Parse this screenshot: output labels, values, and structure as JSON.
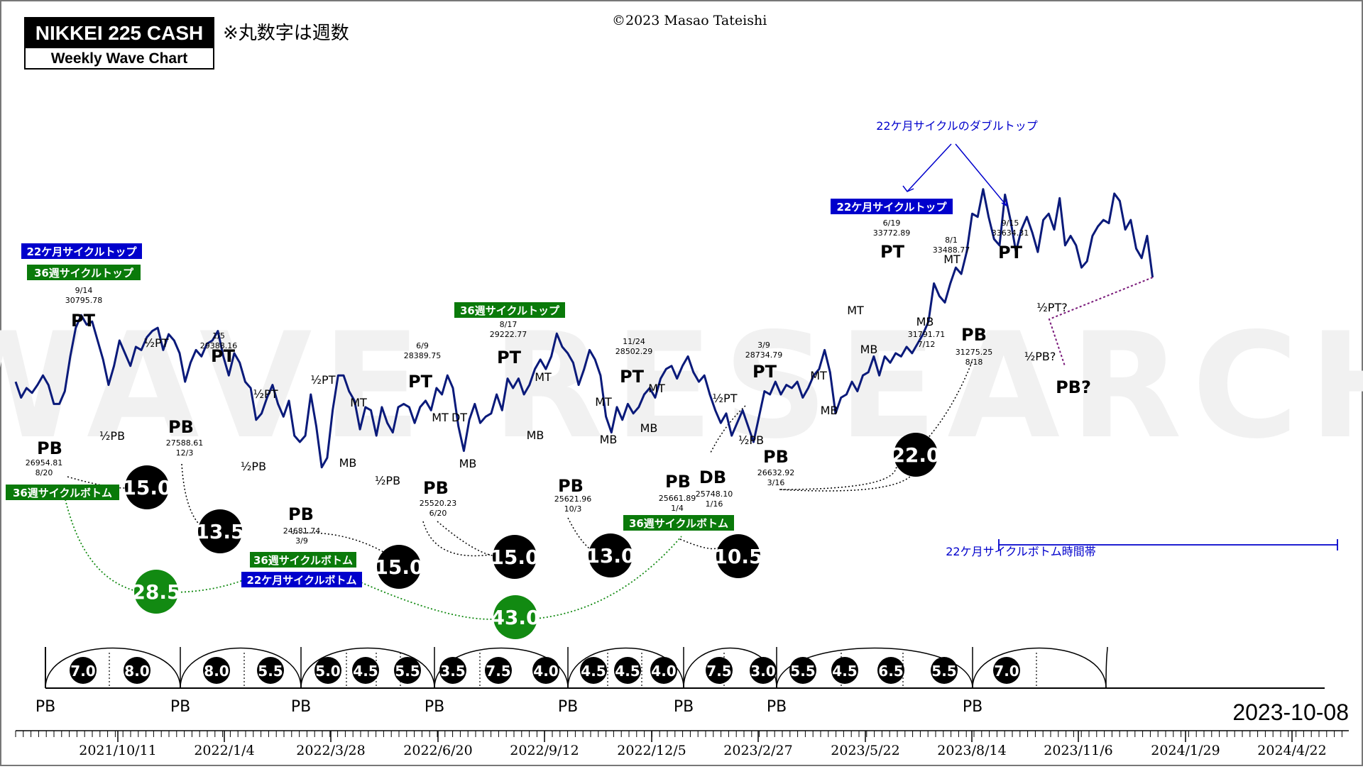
{
  "header": {
    "title": "NIKKEI 225 CASH",
    "subtitle": "Weekly Wave Chart",
    "note": "※丸数字は週数",
    "copyright": "©2023 Masao Tateishi",
    "watermark": "WAVE RESEARCH",
    "date": "2023-10-08"
  },
  "colors": {
    "price_line": "#0a1a7a",
    "blue_label": "#0000cc",
    "green_label": "#0a7a0a",
    "black_circle": "#000000",
    "green_circle": "#128a12"
  },
  "chart_data": {
    "type": "line",
    "series": [
      {
        "values": [
          27700,
          27200,
          27500,
          27350,
          27600,
          27900,
          27600,
          27000,
          27000,
          27400,
          28500,
          29400,
          29800,
          29500,
          29600,
          29000,
          28400,
          27600,
          28200,
          29000,
          28600,
          28200,
          28800,
          28700,
          29100,
          29300,
          29400,
          28700,
          29200,
          29000,
          28600,
          27700,
          28300,
          28700,
          28500,
          28900,
          29000,
          29300,
          28500,
          27900,
          28600,
          28300,
          27700,
          27500,
          26500,
          26700,
          27200,
          27600,
          27000,
          26600,
          27100,
          26000,
          25800,
          26000,
          27300,
          26300,
          25000,
          25300,
          26800,
          27900,
          27900,
          27400,
          27100,
          26200,
          26900,
          26800,
          26000,
          26900,
          26400,
          26100,
          26900,
          27000,
          26900,
          26400,
          26900,
          27100,
          26800,
          27500,
          27300,
          27900,
          27500,
          26300,
          25520,
          26500,
          27000,
          26400,
          26600,
          26700,
          27300,
          26800,
          27800,
          27500,
          27800,
          27300,
          27600,
          28100,
          28400,
          28100,
          28500,
          29220,
          28800,
          28600,
          28300,
          27600,
          28100,
          28700,
          28400,
          27900,
          26600,
          26100,
          26900,
          26500,
          27000,
          26700,
          26900,
          27300,
          27500,
          27200,
          27800,
          28100,
          28200,
          27800,
          28200,
          28500,
          28000,
          27700,
          27900,
          27300,
          26800,
          26400,
          26700,
          26000,
          26400,
          26800,
          26300,
          25800,
          26600,
          27400,
          27300,
          27700,
          27300,
          27600,
          27500,
          27700,
          27200,
          27500,
          27900,
          28100,
          28700,
          28000,
          26700,
          27200,
          27300,
          27700,
          27400,
          27900,
          28000,
          28500,
          27900,
          28500,
          28300,
          28600,
          28500,
          28800,
          28600,
          28900,
          29200,
          29600,
          30800,
          30400,
          30200,
          30800,
          31300,
          31100,
          31800,
          33000,
          32900,
          33772,
          32900,
          32200,
          32000,
          33600,
          32800,
          31800,
          32500,
          32900,
          32400,
          31792,
          32800,
          33000,
          32500,
          33489,
          32000,
          32300,
          32000,
          31300,
          31500,
          32300,
          32600,
          32800,
          32700,
          33634,
          33400,
          32500,
          32800,
          31900,
          31600,
          32300,
          30990
        ]
      }
    ],
    "x_axis": {
      "ticks": [
        "2021/10/11",
        "2022/1/4",
        "2022/3/28",
        "2022/6/20",
        "2022/9/12",
        "2022/12/5",
        "2023/2/27",
        "2023/5/22",
        "2023/8/14",
        "2023/11/6",
        "2024/1/29",
        "2024/4/22"
      ]
    },
    "pivot_labels": [
      {
        "text": "PB",
        "date": "8/20",
        "value": "26954.81"
      },
      {
        "text": "PT",
        "date": "9/14",
        "value": "30795.78"
      },
      {
        "text": "½PT"
      },
      {
        "text": "½PB"
      },
      {
        "text": "PB",
        "date": "12/3",
        "value": "27588.61"
      },
      {
        "text": "PT",
        "date": "1/5",
        "value": "29388.16"
      },
      {
        "text": "½PT"
      },
      {
        "text": "½PB"
      },
      {
        "text": "PB",
        "date": "3/9",
        "value": "24681.74"
      },
      {
        "text": "½PT"
      },
      {
        "text": "MT"
      },
      {
        "text": "MB"
      },
      {
        "text": "½PB"
      },
      {
        "text": "PT",
        "date": "6/9",
        "value": "28389.75"
      },
      {
        "text": "PB",
        "date": "6/20",
        "value": "25520.23"
      },
      {
        "text": "MT"
      },
      {
        "text": "DT"
      },
      {
        "text": "MB"
      },
      {
        "text": "PT",
        "date": "8/17",
        "value": "29222.77"
      },
      {
        "text": "MT"
      },
      {
        "text": "MB"
      },
      {
        "text": "PB",
        "date": "10/3",
        "value": "25621.96"
      },
      {
        "text": "MT"
      },
      {
        "text": "MB"
      },
      {
        "text": "PT",
        "date": "11/24",
        "value": "28502.29"
      },
      {
        "text": "MT"
      },
      {
        "text": "MB"
      },
      {
        "text": "PB",
        "date": "1/4",
        "value": "25661.89"
      },
      {
        "text": "DB",
        "date": "1/16",
        "value": "25748.10"
      },
      {
        "text": "½PT"
      },
      {
        "text": "½PB"
      },
      {
        "text": "PT",
        "date": "3/9",
        "value": "28734.79"
      },
      {
        "text": "PB",
        "date": "3/16",
        "value": "26632.92"
      },
      {
        "text": "MT"
      },
      {
        "text": "MB"
      },
      {
        "text": "MT"
      },
      {
        "text": "MB"
      },
      {
        "text": "PT",
        "date": "6/19",
        "value": "33772.89"
      },
      {
        "text": "MB",
        "date": "7/12",
        "value": "31791.71"
      },
      {
        "text": "MT",
        "date": "8/1",
        "value": "33488.77"
      },
      {
        "text": "PB",
        "date": "8/18",
        "value": "31275.25"
      },
      {
        "text": "PT",
        "date": "9/15",
        "value": "33634.31"
      },
      {
        "text": "½PT?"
      },
      {
        "text": "½PB?"
      },
      {
        "text": "PB?"
      }
    ],
    "cycle_labels": [
      {
        "text": "22ケ月サイクルトップ",
        "color": "blue"
      },
      {
        "text": "36週サイクルトップ",
        "color": "green"
      },
      {
        "text": "36週サイクルボトム",
        "color": "green"
      },
      {
        "text": "36週サイクルトップ",
        "color": "green"
      },
      {
        "text": "36週サイクルボトム",
        "color": "green"
      },
      {
        "text": "22ケ月サイクルボトム",
        "color": "blue"
      },
      {
        "text": "36週サイクルボトム",
        "color": "green"
      },
      {
        "text": "22ケ月サイクルトップ",
        "color": "blue"
      },
      {
        "text": "22ケ月サイクルのダブルトップ",
        "color": "blue",
        "style": "plain"
      },
      {
        "text": "22ケ月サイクルボトム時間帯",
        "color": "blue",
        "style": "plain"
      }
    ],
    "week_circles": [
      {
        "value": "15.0",
        "color": "black"
      },
      {
        "value": "13.5",
        "color": "black"
      },
      {
        "value": "15.0",
        "color": "black"
      },
      {
        "value": "15.0",
        "color": "black"
      },
      {
        "value": "13.0",
        "color": "black"
      },
      {
        "value": "10.5",
        "color": "black"
      },
      {
        "value": "22.0",
        "color": "black"
      },
      {
        "value": "28.5",
        "color": "green"
      },
      {
        "value": "43.0",
        "color": "green"
      }
    ],
    "cycle_strip": {
      "bottom_labels": [
        "PB",
        "PB",
        "PB",
        "PB",
        "PB",
        "PB",
        "PB",
        "PB"
      ],
      "week_counts": [
        "7.0",
        "8.0",
        "8.0",
        "5.5",
        "5.0",
        "4.5",
        "5.5",
        "3.5",
        "7.5",
        "4.0",
        "4.5",
        "4.5",
        "4.0",
        "7.5",
        "3.0",
        "5.5",
        "4.5",
        "6.5",
        "5.5",
        "7.0"
      ]
    }
  }
}
